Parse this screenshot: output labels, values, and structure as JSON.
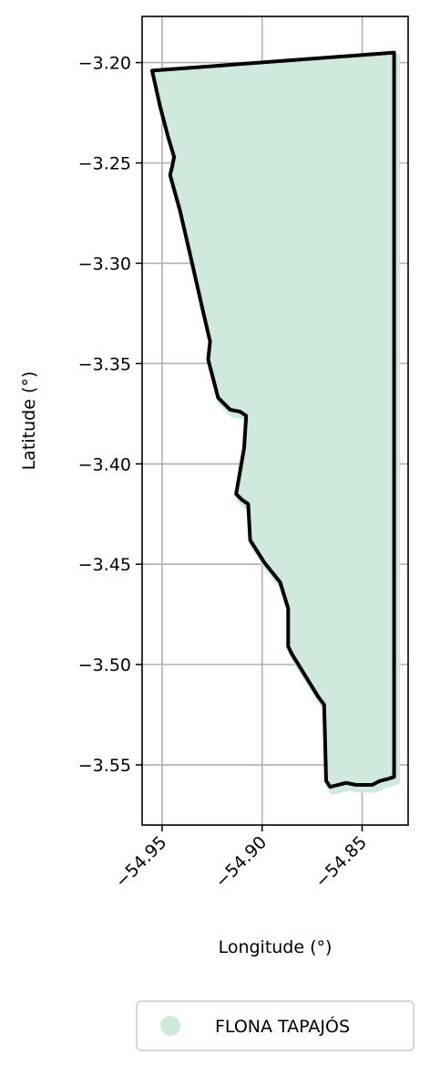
{
  "chart_data": {
    "type": "map",
    "xlabel": "Longitude (°)",
    "ylabel": "Latitude (°)",
    "xlim": [
      -54.96,
      -54.827
    ],
    "ylim": [
      -3.58,
      -3.177
    ],
    "x_ticks": [
      -54.95,
      -54.9,
      -54.85
    ],
    "x_tick_labels": [
      "−54.95",
      "−54.90",
      "−54.85"
    ],
    "y_ticks": [
      -3.2,
      -3.25,
      -3.3,
      -3.35,
      -3.4,
      -3.45,
      -3.5,
      -3.55
    ],
    "y_tick_labels": [
      "−3.20",
      "−3.25",
      "−3.30",
      "−3.35",
      "−3.40",
      "−3.45",
      "−3.50",
      "−3.55"
    ],
    "grid": true,
    "legend_position": "bottom-center",
    "legend": [
      {
        "label": "FLONA TAPAJÓS",
        "color": "#cfeadd"
      }
    ],
    "boundary_color": "#000000",
    "fill_color": "#cfeadd",
    "boundary": [
      [
        -54.955,
        -3.204
      ],
      [
        -54.834,
        -3.195
      ],
      [
        -54.834,
        -3.556
      ],
      [
        -54.837,
        -3.557
      ],
      [
        -54.841,
        -3.558
      ],
      [
        -54.845,
        -3.56
      ],
      [
        -54.853,
        -3.56
      ],
      [
        -54.858,
        -3.559
      ],
      [
        -54.866,
        -3.561
      ],
      [
        -54.868,
        -3.558
      ],
      [
        -54.869,
        -3.52
      ],
      [
        -54.872,
        -3.516
      ],
      [
        -54.885,
        -3.495
      ],
      [
        -54.887,
        -3.491
      ],
      [
        -54.887,
        -3.472
      ],
      [
        -54.891,
        -3.459
      ],
      [
        -54.899,
        -3.449
      ],
      [
        -54.906,
        -3.438
      ],
      [
        -54.907,
        -3.42
      ],
      [
        -54.91,
        -3.418
      ],
      [
        -54.913,
        -3.415
      ],
      [
        -54.909,
        -3.392
      ],
      [
        -54.908,
        -3.376
      ],
      [
        -54.911,
        -3.374
      ],
      [
        -54.916,
        -3.373
      ],
      [
        -54.922,
        -3.367
      ],
      [
        -54.927,
        -3.348
      ],
      [
        -54.926,
        -3.339
      ],
      [
        -54.93,
        -3.322
      ],
      [
        -54.935,
        -3.3
      ],
      [
        -54.941,
        -3.274
      ],
      [
        -54.946,
        -3.256
      ],
      [
        -54.945,
        -3.252
      ],
      [
        -54.944,
        -3.247
      ],
      [
        -54.947,
        -3.237
      ],
      [
        -54.951,
        -3.222
      ],
      [
        -54.955,
        -3.204
      ]
    ]
  }
}
